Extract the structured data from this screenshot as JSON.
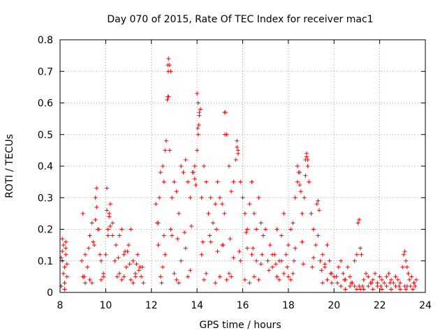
{
  "chart_data": {
    "type": "scatter",
    "title": "Day 070 of 2015, Rate Of TEC Index for receiver mac1",
    "xlabel": "GPS time / hours",
    "ylabel": "ROTI / TECUs",
    "xlim": [
      8,
      24
    ],
    "ylim": [
      0,
      0.8
    ],
    "xticks": [
      8,
      10,
      12,
      14,
      16,
      18,
      20,
      22,
      24
    ],
    "yticks": [
      0,
      0.1,
      0.2,
      0.3,
      0.4,
      0.5,
      0.6,
      0.7,
      0.8
    ],
    "xtick_labels": [
      "8",
      "10",
      "12",
      "14",
      "16",
      "18",
      "20",
      "22",
      "24"
    ],
    "ytick_labels": [
      "0",
      "0.1",
      "0.2",
      "0.3",
      "0.4",
      "0.5",
      "0.6",
      "0.7",
      "0.8"
    ],
    "grid": true,
    "legend": "none",
    "marker": "plus",
    "marker_color": "#ff0000",
    "series": [
      {
        "x": [
          8.05,
          8.1,
          8.15,
          8.2,
          8.25,
          8.3,
          8.1,
          8.2,
          8.25,
          8.15,
          8.3,
          8.05,
          8.2,
          8.1,
          8.25,
          8.95,
          9.0,
          9.05,
          9.1,
          9.2,
          9.3,
          9.4,
          9.5,
          9.55,
          9.6,
          9.7,
          9.8,
          9.9,
          10.0,
          10.05,
          10.1,
          10.15,
          10.2,
          10.3,
          10.4,
          10.5,
          10.6,
          10.7,
          10.8,
          10.9,
          11.0,
          11.1,
          11.2,
          11.3,
          11.4,
          11.5,
          9.6,
          9.55,
          9.65,
          10.05,
          10.15,
          10.1,
          10.2,
          10.3,
          9.0,
          9.1,
          9.3,
          9.4,
          9.8,
          9.9,
          10.6,
          10.7,
          10.8,
          11.1,
          11.2,
          11.3,
          10.95,
          11.05,
          9.25,
          9.45,
          9.75,
          10.45,
          10.55,
          10.85,
          11.35,
          11.45,
          11.55,
          11.6,
          11.65,
          12.2,
          12.3,
          12.35,
          12.4,
          12.5,
          12.55,
          12.6,
          12.65,
          12.7,
          12.72,
          12.75,
          12.8,
          12.85,
          12.9,
          13.0,
          13.1,
          13.2,
          13.3,
          13.4,
          13.5,
          13.6,
          13.7,
          13.8,
          13.9,
          14.0,
          14.05,
          14.1,
          14.15,
          14.2,
          14.3,
          14.4,
          14.5,
          14.6,
          14.7,
          14.8,
          14.9,
          15.0,
          15.1,
          15.2,
          15.25,
          15.3,
          15.4,
          15.5,
          15.6,
          15.7,
          15.75,
          15.8,
          15.9,
          16.0,
          16.1,
          16.2,
          16.3,
          16.4,
          16.5,
          16.6,
          16.7,
          16.8,
          16.9,
          17.0,
          12.72,
          12.74,
          12.7,
          12.75,
          12.8,
          14.0,
          14.05,
          14.1,
          14.08,
          14.03,
          15.2,
          15.22,
          15.75,
          15.8,
          13.9,
          13.95,
          13.85,
          12.4,
          12.45,
          12.5,
          13.0,
          13.1,
          13.2,
          13.6,
          13.7,
          14.3,
          14.4,
          14.8,
          15.0,
          15.3,
          15.4,
          15.5,
          16.1,
          16.3,
          16.5,
          16.7,
          12.3,
          12.6,
          12.9,
          13.3,
          13.5,
          14.2,
          14.6,
          14.9,
          15.1,
          15.6,
          15.9,
          16.2,
          16.4,
          16.6,
          16.8,
          12.25,
          12.55,
          12.85,
          13.15,
          13.45,
          13.75,
          14.25,
          14.55,
          14.85,
          15.15,
          15.45,
          15.85,
          16.15,
          16.45,
          16.85,
          17.1,
          17.2,
          17.3,
          17.4,
          17.5,
          17.6,
          17.7,
          17.8,
          17.9,
          18.0,
          18.1,
          18.2,
          18.3,
          18.4,
          18.5,
          18.6,
          18.7,
          18.75,
          18.8,
          18.85,
          18.9,
          19.0,
          19.1,
          19.2,
          19.3,
          19.4,
          19.5,
          19.6,
          19.7,
          19.8,
          19.9,
          20.0,
          18.4,
          18.45,
          18.5,
          18.55,
          18.8,
          18.85,
          18.75,
          19.25,
          19.3,
          19.35,
          18.0,
          18.1,
          18.2,
          17.5,
          17.6,
          17.8,
          19.5,
          19.7,
          19.9,
          17.3,
          17.7,
          18.3,
          18.6,
          19.1,
          19.6,
          17.15,
          17.45,
          17.95,
          18.25,
          18.65,
          19.05,
          19.45,
          19.85,
          20.1,
          20.2,
          20.3,
          20.4,
          20.5,
          20.6,
          20.7,
          20.8,
          20.9,
          21.0,
          21.05,
          21.1,
          21.15,
          21.2,
          21.3,
          21.4,
          21.5,
          21.6,
          21.7,
          21.8,
          21.9,
          22.0,
          22.1,
          22.2,
          22.3,
          22.4,
          22.5,
          22.6,
          22.7,
          22.8,
          22.9,
          23.0,
          23.05,
          23.1,
          23.15,
          23.2,
          23.25,
          23.3,
          23.4,
          23.5,
          23.6,
          20.9,
          21.0,
          21.1,
          21.15,
          23.1,
          23.15,
          23.2,
          20.3,
          20.5,
          20.7,
          21.3,
          21.5,
          21.7,
          21.9,
          22.1,
          22.3,
          22.5,
          22.7,
          22.9,
          23.35,
          23.45,
          23.55,
          20.15,
          20.45,
          20.75,
          21.25,
          21.65,
          22.05,
          22.45,
          22.85,
          23.5
        ],
        "y": [
          0.02,
          0.1,
          0.15,
          0.08,
          0.12,
          0.05,
          0.17,
          0.03,
          0.14,
          0.06,
          0.09,
          0.11,
          0.01,
          0.13,
          0.16,
          0.1,
          0.25,
          0.05,
          0.12,
          0.08,
          0.18,
          0.22,
          0.15,
          0.3,
          0.33,
          0.2,
          0.1,
          0.06,
          0.12,
          0.33,
          0.18,
          0.25,
          0.28,
          0.22,
          0.1,
          0.05,
          0.18,
          0.2,
          0.12,
          0.08,
          0.15,
          0.2,
          0.1,
          0.05,
          0.12,
          0.08,
          0.27,
          0.23,
          0.2,
          0.26,
          0.24,
          0.2,
          0.21,
          0.18,
          0.05,
          0.03,
          0.04,
          0.03,
          0.04,
          0.05,
          0.06,
          0.04,
          0.05,
          0.04,
          0.03,
          0.06,
          0.13,
          0.09,
          0.14,
          0.16,
          0.12,
          0.15,
          0.11,
          0.13,
          0.09,
          0.07,
          0.05,
          0.08,
          0.03,
          0.28,
          0.22,
          0.3,
          0.38,
          0.4,
          0.35,
          0.45,
          0.48,
          0.61,
          0.62,
          0.74,
          0.72,
          0.7,
          0.3,
          0.35,
          0.32,
          0.25,
          0.4,
          0.38,
          0.42,
          0.35,
          0.3,
          0.38,
          0.4,
          0.45,
          0.5,
          0.56,
          0.58,
          0.3,
          0.4,
          0.35,
          0.25,
          0.3,
          0.22,
          0.28,
          0.35,
          0.3,
          0.28,
          0.25,
          0.57,
          0.5,
          0.4,
          0.32,
          0.35,
          0.42,
          0.48,
          0.45,
          0.35,
          0.3,
          0.25,
          0.2,
          0.28,
          0.35,
          0.25,
          0.2,
          0.3,
          0.22,
          0.18,
          0.2,
          0.72,
          0.7,
          0.61,
          0.62,
          0.45,
          0.63,
          0.6,
          0.57,
          0.53,
          0.52,
          0.57,
          0.5,
          0.46,
          0.44,
          0.36,
          0.34,
          0.38,
          0.05,
          0.03,
          0.08,
          0.06,
          0.04,
          0.03,
          0.05,
          0.07,
          0.04,
          0.06,
          0.03,
          0.05,
          0.04,
          0.06,
          0.05,
          0.04,
          0.03,
          0.05,
          0.04,
          0.15,
          0.12,
          0.18,
          0.1,
          0.14,
          0.12,
          0.16,
          0.13,
          0.15,
          0.11,
          0.1,
          0.14,
          0.12,
          0.1,
          0.09,
          0.22,
          0.18,
          0.2,
          0.17,
          0.19,
          0.21,
          0.16,
          0.18,
          0.2,
          0.15,
          0.17,
          0.13,
          0.19,
          0.14,
          0.12,
          0.1,
          0.15,
          0.08,
          0.12,
          0.2,
          0.1,
          0.18,
          0.25,
          0.12,
          0.15,
          0.2,
          0.22,
          0.3,
          0.35,
          0.38,
          0.25,
          0.3,
          0.42,
          0.44,
          0.4,
          0.35,
          0.25,
          0.2,
          0.15,
          0.18,
          0.1,
          0.12,
          0.08,
          0.15,
          0.1,
          0.06,
          0.05,
          0.4,
          0.38,
          0.34,
          0.32,
          0.43,
          0.42,
          0.37,
          0.28,
          0.29,
          0.26,
          0.05,
          0.04,
          0.06,
          0.05,
          0.04,
          0.06,
          0.03,
          0.04,
          0.03,
          0.12,
          0.1,
          0.14,
          0.16,
          0.11,
          0.09,
          0.07,
          0.09,
          0.08,
          0.1,
          0.09,
          0.08,
          0.07,
          0.06,
          0.05,
          0.08,
          0.1,
          0.06,
          0.04,
          0.08,
          0.05,
          0.03,
          0.1,
          0.12,
          0.22,
          0.23,
          0.14,
          0.12,
          0.04,
          0.06,
          0.05,
          0.03,
          0.04,
          0.06,
          0.03,
          0.05,
          0.04,
          0.03,
          0.05,
          0.06,
          0.04,
          0.03,
          0.05,
          0.04,
          0.03,
          0.08,
          0.12,
          0.13,
          0.1,
          0.08,
          0.06,
          0.04,
          0.05,
          0.03,
          0.04,
          0.02,
          0.01,
          0.02,
          0.01,
          0.02,
          0.01,
          0.02,
          0.02,
          0.01,
          0.02,
          0.01,
          0.02,
          0.01,
          0.02,
          0.01,
          0.02,
          0.01,
          0.02,
          0.01,
          0.02,
          0.01,
          0.02,
          0.03,
          0.04,
          0.03,
          0.02,
          0.03,
          0.02,
          0.03,
          0.02,
          0.03
        ]
      }
    ]
  }
}
